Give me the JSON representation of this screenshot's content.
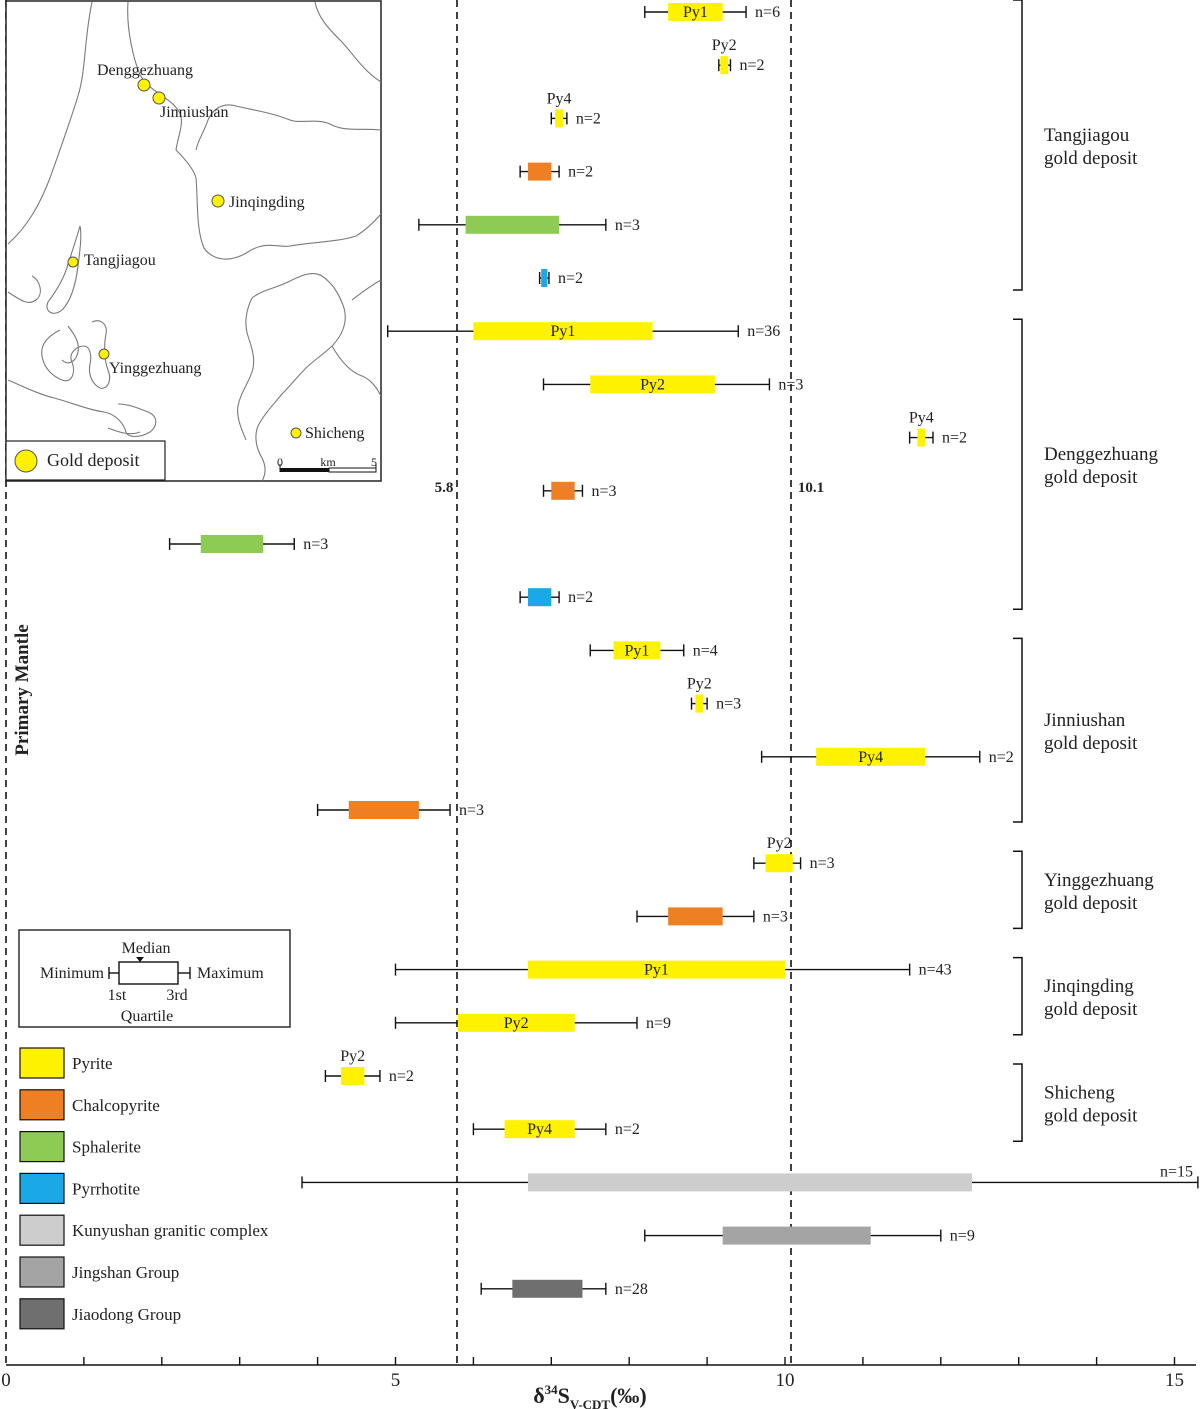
{
  "chart_data": {
    "type": "box-range",
    "xlabel_main": "δ",
    "xlabel_sup": "34",
    "xlabel_s": "S",
    "xlabel_sub": "V-CDT",
    "xlabel_unit": "(‰)",
    "xlim": [
      0,
      15.3
    ],
    "xticks": [
      0,
      5,
      10,
      15
    ],
    "reference_lines": [
      {
        "value": 0,
        "label": "Primary Mantle"
      },
      {
        "value": 5.8,
        "label": "5.8"
      },
      {
        "value": 10.1,
        "label": "10.1"
      }
    ],
    "rows": [
      {
        "mineral": "pyrite",
        "min": 8.2,
        "q1": 8.5,
        "q3": 9.2,
        "max": 9.5,
        "label": "Py1",
        "label_pos": "inside",
        "n": "n=6"
      },
      {
        "mineral": "pyrite",
        "min": 9.15,
        "q1": 9.17,
        "q3": 9.27,
        "max": 9.3,
        "label": "Py2",
        "label_pos": "above",
        "n": "n=2"
      },
      {
        "mineral": "pyrite",
        "min": 7.0,
        "q1": 7.05,
        "q3": 7.15,
        "max": 7.2,
        "label": "Py4",
        "label_pos": "above",
        "n": "n=2"
      },
      {
        "mineral": "chalcopyrite",
        "min": 6.6,
        "q1": 6.7,
        "q3": 7.0,
        "max": 7.1,
        "label": "",
        "label_pos": "",
        "n": "n=2"
      },
      {
        "mineral": "sphalerite",
        "min": 5.3,
        "q1": 5.9,
        "q3": 7.1,
        "max": 7.7,
        "label": "",
        "label_pos": "",
        "n": "n=3"
      },
      {
        "mineral": "pyrrhotite",
        "min": 6.85,
        "q1": 6.87,
        "q3": 6.95,
        "max": 6.97,
        "label": "",
        "label_pos": "",
        "n": "n=2"
      },
      {
        "mineral": "pyrite",
        "min": 4.9,
        "q1": 6.0,
        "q3": 8.3,
        "max": 9.4,
        "label": "Py1",
        "label_pos": "inside",
        "n": "n=36"
      },
      {
        "mineral": "pyrite",
        "min": 6.9,
        "q1": 7.5,
        "q3": 9.1,
        "max": 9.8,
        "label": "Py2",
        "label_pos": "inside",
        "n": "n=3"
      },
      {
        "mineral": "pyrite",
        "min": 11.6,
        "q1": 11.7,
        "q3": 11.8,
        "max": 11.9,
        "label": "Py4",
        "label_pos": "above",
        "n": "n=2"
      },
      {
        "mineral": "chalcopyrite",
        "min": 6.9,
        "q1": 7.0,
        "q3": 7.3,
        "max": 7.4,
        "label": "",
        "label_pos": "",
        "n": "n=3"
      },
      {
        "mineral": "sphalerite",
        "min": 2.1,
        "q1": 2.5,
        "q3": 3.3,
        "max": 3.7,
        "label": "",
        "label_pos": "",
        "n": "n=3"
      },
      {
        "mineral": "pyrrhotite",
        "min": 6.6,
        "q1": 6.7,
        "q3": 7.0,
        "max": 7.1,
        "label": "",
        "label_pos": "",
        "n": "n=2"
      },
      {
        "mineral": "pyrite",
        "min": 7.5,
        "q1": 7.8,
        "q3": 8.4,
        "max": 8.7,
        "label": "Py1",
        "label_pos": "inside",
        "n": "n=4"
      },
      {
        "mineral": "pyrite",
        "min": 8.8,
        "q1": 8.85,
        "q3": 8.95,
        "max": 9.0,
        "label": "Py2",
        "label_pos": "above",
        "n": "n=3"
      },
      {
        "mineral": "pyrite",
        "min": 9.7,
        "q1": 10.4,
        "q3": 11.8,
        "max": 12.5,
        "label": "Py4",
        "label_pos": "inside",
        "n": "n=2"
      },
      {
        "mineral": "chalcopyrite",
        "min": 4.0,
        "q1": 4.4,
        "q3": 5.3,
        "max": 5.7,
        "label": "",
        "label_pos": "",
        "n": "n=3"
      },
      {
        "mineral": "pyrite",
        "min": 9.6,
        "q1": 9.75,
        "q3": 10.1,
        "max": 10.2,
        "label": "Py2",
        "label_pos": "above",
        "n": "n=3"
      },
      {
        "mineral": "chalcopyrite",
        "min": 8.1,
        "q1": 8.5,
        "q3": 9.2,
        "max": 9.6,
        "label": "",
        "label_pos": "",
        "n": "n=3"
      },
      {
        "mineral": "pyrite",
        "min": 5.0,
        "q1": 6.7,
        "q3": 10.0,
        "max": 11.6,
        "label": "Py1",
        "label_pos": "inside",
        "n": "n=43"
      },
      {
        "mineral": "pyrite",
        "min": 5.0,
        "q1": 5.8,
        "q3": 7.3,
        "max": 8.1,
        "label": "Py2",
        "label_pos": "inside",
        "n": "n=9"
      },
      {
        "mineral": "pyrite",
        "min": 4.1,
        "q1": 4.3,
        "q3": 4.6,
        "max": 4.8,
        "label": "Py2",
        "label_pos": "above",
        "n": "n=2"
      },
      {
        "mineral": "pyrite",
        "min": 6.0,
        "q1": 6.4,
        "q3": 7.3,
        "max": 7.7,
        "label": "Py4",
        "label_pos": "inside",
        "n": "n=2"
      },
      {
        "mineral": "kunyushan",
        "min": 3.8,
        "q1": 6.7,
        "q3": 12.4,
        "max": 15.3,
        "label": "",
        "label_pos": "",
        "n": "n=15"
      },
      {
        "mineral": "jingshan",
        "min": 8.2,
        "q1": 9.2,
        "q3": 11.1,
        "max": 12.0,
        "label": "",
        "label_pos": "",
        "n": "n=9"
      },
      {
        "mineral": "jiaodong",
        "min": 6.1,
        "q1": 6.5,
        "q3": 7.4,
        "max": 7.7,
        "label": "",
        "label_pos": "",
        "n": "n=28"
      }
    ],
    "groups": [
      {
        "line1": "Tangjiagou",
        "line2": "gold deposit",
        "first_row": 0,
        "last_row": 5
      },
      {
        "line1": "Denggezhuang",
        "line2": "gold deposit",
        "first_row": 6,
        "last_row": 11
      },
      {
        "line1": "Jinniushan",
        "line2": "gold deposit",
        "first_row": 12,
        "last_row": 15
      },
      {
        "line1": "Yinggezhuang",
        "line2": "gold deposit",
        "first_row": 16,
        "last_row": 17
      },
      {
        "line1": "Jinqingding",
        "line2": "gold deposit",
        "first_row": 18,
        "last_row": 19
      },
      {
        "line1": "Shicheng",
        "line2": "gold deposit",
        "first_row": 20,
        "last_row": 21
      }
    ],
    "legend": [
      {
        "key": "pyrite",
        "label": "Pyrite",
        "color": "#FFF200"
      },
      {
        "key": "chalcopyrite",
        "label": "Chalcopyrite",
        "color": "#EE7F22"
      },
      {
        "key": "sphalerite",
        "label": "Sphalerite",
        "color": "#8DCB55"
      },
      {
        "key": "pyrrhotite",
        "label": "Pyrrhotite",
        "color": "#1BA8E6"
      },
      {
        "key": "kunyushan",
        "label": "Kunyushan granitic complex",
        "color": "#CDCDCD"
      },
      {
        "key": "jingshan",
        "label": "Jingshan Group",
        "color": "#A4A4A4"
      },
      {
        "key": "jiaodong",
        "label": "Jiaodong Group",
        "color": "#6F6F6F"
      }
    ],
    "boxplot_key": {
      "median": "Median",
      "minimum": "Minimum",
      "maximum": "Maximum",
      "first": "1st",
      "third": "3rd",
      "quartile": "Quartile"
    }
  },
  "inset_map": {
    "deposits": [
      "Denggezhuang",
      "Jinniushan",
      "Jinqingding",
      "Tangjiagou",
      "Yinggezhuang",
      "Shicheng"
    ],
    "legend_label": "Gold deposit",
    "scale_zero": "0",
    "scale_unit": "km",
    "scale_max": "5"
  }
}
